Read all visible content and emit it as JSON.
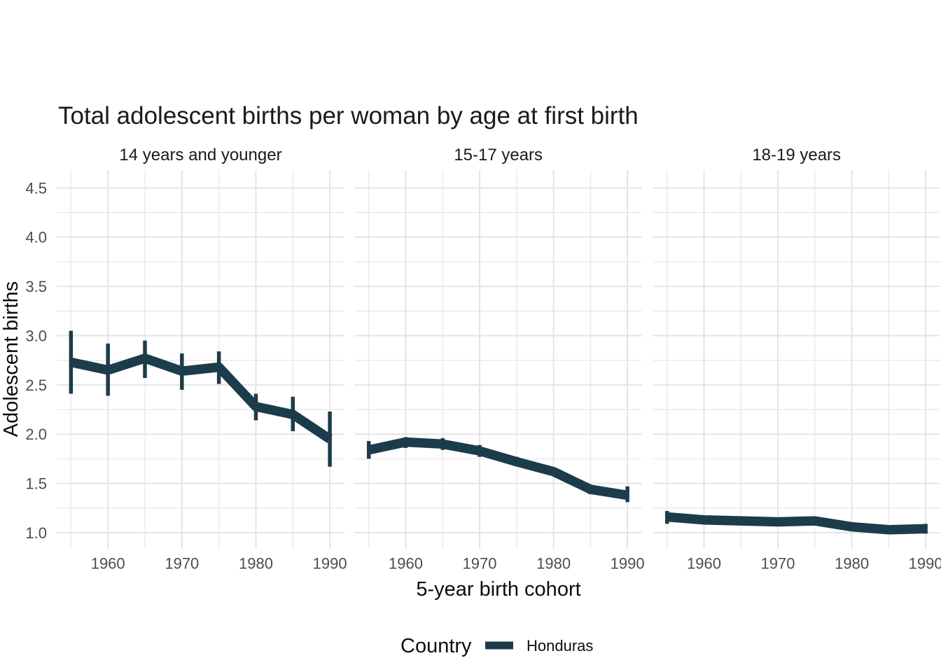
{
  "chart_data": {
    "type": "line",
    "title": "Total adolescent births per woman by age at first birth",
    "xlabel": "5-year birth cohort",
    "ylabel": "Adolescent births",
    "legend_title": "Country",
    "series_name": "Honduras",
    "series_color": "#1c3c4b",
    "x": [
      1955,
      1960,
      1965,
      1970,
      1975,
      1980,
      1985,
      1990
    ],
    "x_major_ticks": [
      1960,
      1970,
      1980,
      1990
    ],
    "x_minor_ticks": [
      1955,
      1965,
      1975,
      1985
    ],
    "x_tick_labels": [
      "1960",
      "1970",
      "1980",
      "1990"
    ],
    "y_major_ticks": [
      1.0,
      1.5,
      2.0,
      2.5,
      3.0,
      3.5,
      4.0,
      4.5
    ],
    "y_minor_ticks": [
      1.25,
      1.75,
      2.25,
      2.75,
      3.25,
      3.75,
      4.25
    ],
    "y_tick_labels": [
      "1.0",
      "1.5",
      "2.0",
      "2.5",
      "3.0",
      "3.5",
      "4.0",
      "4.5"
    ],
    "x_range": [
      1953.1,
      1991.95
    ],
    "y_range": [
      0.8366,
      4.68
    ],
    "grid": true,
    "legend_position": "bottom",
    "facets": [
      {
        "label": "14 years and younger",
        "y": [
          2.73,
          2.65,
          2.77,
          2.64,
          2.68,
          2.28,
          2.2,
          1.95
        ],
        "ymin": [
          2.41,
          2.39,
          2.57,
          2.45,
          2.51,
          2.14,
          2.03,
          1.67
        ],
        "ymax": [
          3.05,
          2.92,
          2.95,
          2.82,
          2.84,
          2.41,
          2.38,
          2.23
        ]
      },
      {
        "label": "15-17 years",
        "y": [
          1.84,
          1.92,
          1.9,
          1.83,
          1.72,
          1.62,
          1.44,
          1.38
        ],
        "ymin": [
          1.75,
          1.86,
          1.84,
          1.77,
          1.68,
          1.58,
          1.39,
          1.31
        ],
        "ymax": [
          1.93,
          1.97,
          1.96,
          1.89,
          1.77,
          1.66,
          1.48,
          1.47
        ]
      },
      {
        "label": "18-19 years",
        "y": [
          1.16,
          1.13,
          1.12,
          1.11,
          1.12,
          1.06,
          1.03,
          1.04
        ],
        "ymin": [
          1.09,
          1.1,
          1.09,
          1.08,
          1.09,
          1.03,
          1.0,
          0.99
        ],
        "ymax": [
          1.22,
          1.16,
          1.15,
          1.14,
          1.15,
          1.09,
          1.06,
          1.09
        ]
      }
    ]
  },
  "colors": {
    "series": "#1c3c4b",
    "grid_major": "#e4e4e4",
    "grid_minor": "#e9e9e9",
    "tick_label": "#4d4d4d",
    "text": "#1a1a1a",
    "background": "#ffffff"
  }
}
